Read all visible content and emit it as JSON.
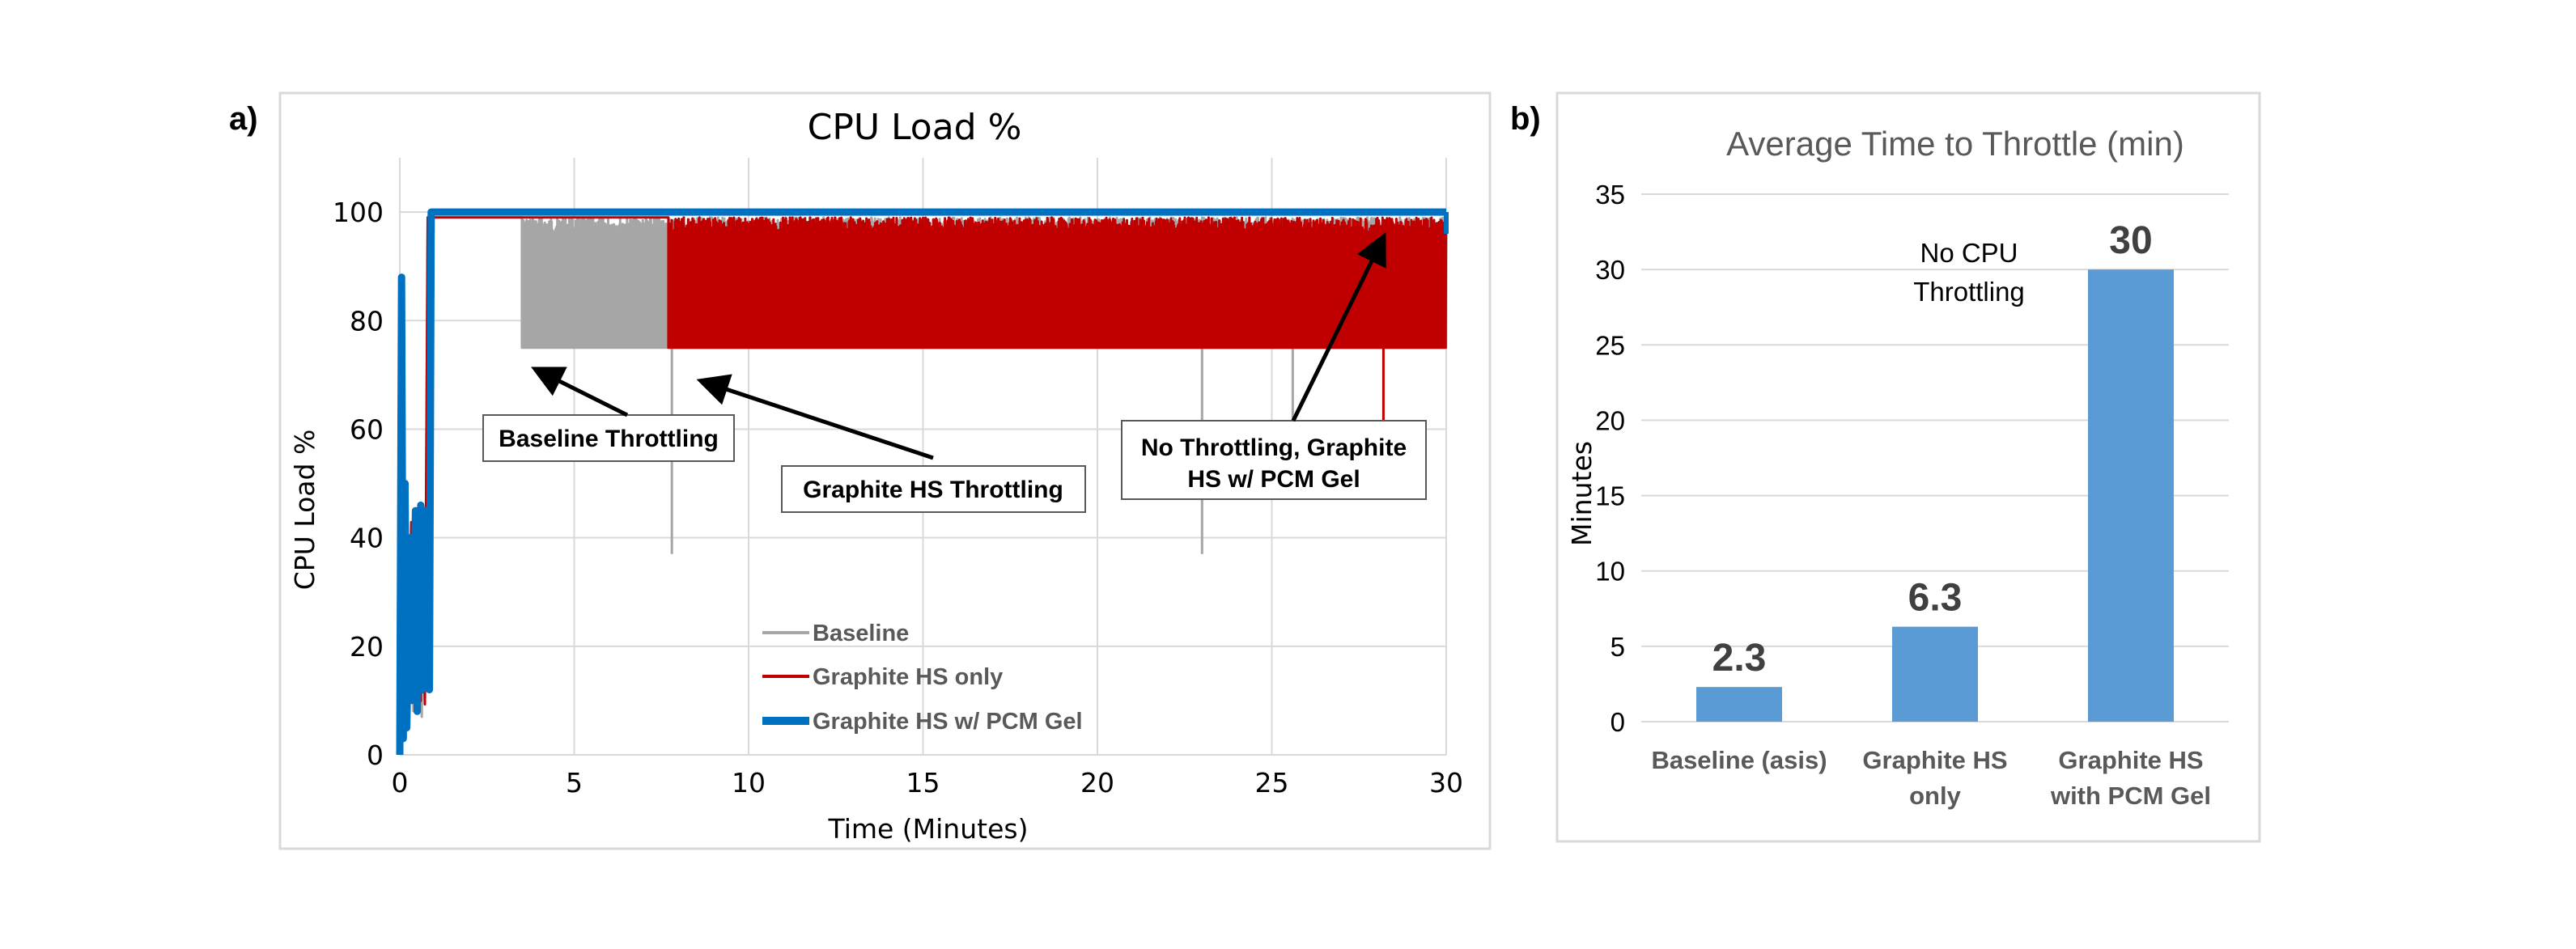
{
  "panels": {
    "a": {
      "letter": "a)",
      "annotations": [
        {
          "text_lines": [
            "Baseline Throttling"
          ]
        },
        {
          "text_lines": [
            "Graphite HS Throttling"
          ]
        },
        {
          "text_lines": [
            "No Throttling, Graphite",
            "HS w/ PCM Gel"
          ]
        }
      ]
    },
    "b": {
      "letter": "b)",
      "note_lines": [
        "No CPU",
        "Throttling"
      ]
    }
  },
  "chart_data": [
    {
      "type": "line",
      "title": "CPU Load %",
      "xlabel": "Time (Minutes)",
      "ylabel": "CPU Load %",
      "xlim": [
        0,
        30
      ],
      "ylim": [
        0,
        110
      ],
      "xticks": [
        0,
        5,
        10,
        15,
        20,
        25,
        30
      ],
      "yticks": [
        0,
        20,
        40,
        60,
        80,
        100
      ],
      "grid": true,
      "legend_position": "bottom-center",
      "series": [
        {
          "name": "Baseline",
          "color": "#a6a6a6",
          "stroke_width": 3,
          "description": "Rises to 100% by ~0.8 min; throttles with oscillation between ~75% and ~99% from ~3.5 min to 30 min",
          "x": [
            0,
            0.3,
            0.8,
            3.5,
            3.7,
            30
          ],
          "y": [
            0,
            20,
            100,
            100,
            75,
            75
          ],
          "throttle_band": {
            "from_x": 3.5,
            "to_x": 30,
            "low": 75,
            "high": 99
          },
          "dips": [
            {
              "x": 7.8,
              "y": 37
            },
            {
              "x": 23,
              "y": 37
            },
            {
              "x": 25.6,
              "y": 60
            }
          ]
        },
        {
          "name": "Graphite HS only",
          "color": "#c00000",
          "stroke_width": 3,
          "description": "Rises to 100% by ~0.8 min; throttles between ~75% and ~99% from ~7.7 min to 30 min",
          "x": [
            0,
            0.3,
            0.8,
            7.7,
            7.8,
            30
          ],
          "y": [
            0,
            20,
            100,
            100,
            75,
            75
          ],
          "throttle_band": {
            "from_x": 7.7,
            "to_x": 30,
            "low": 75,
            "high": 99
          },
          "dips": [
            {
              "x": 28.2,
              "y": 61
            }
          ]
        },
        {
          "name": "Graphite HS w/ PCM Gel",
          "color": "#0070c0",
          "stroke_width": 9,
          "description": "Rises to 100% at ~0.9 min and stays at 100% through 30 min (no throttling)",
          "x": [
            0,
            0.9,
            0.9,
            30
          ],
          "y": [
            0,
            10,
            100,
            100
          ]
        }
      ]
    },
    {
      "type": "bar",
      "title": "Average Time to Throttle (min)",
      "xlabel": "",
      "ylabel": "Minutes",
      "ylim": [
        0,
        35
      ],
      "yticks": [
        0,
        5,
        10,
        15,
        20,
        25,
        30,
        35
      ],
      "grid": true,
      "color": "#5b9bd5",
      "categories": [
        [
          "Baseline (asis)"
        ],
        [
          "Graphite HS",
          "only"
        ],
        [
          "Graphite HS",
          "with PCM Gel"
        ]
      ],
      "values": [
        2.3,
        6.3,
        30
      ],
      "data_labels": [
        "2.3",
        "6.3",
        "30"
      ]
    }
  ]
}
